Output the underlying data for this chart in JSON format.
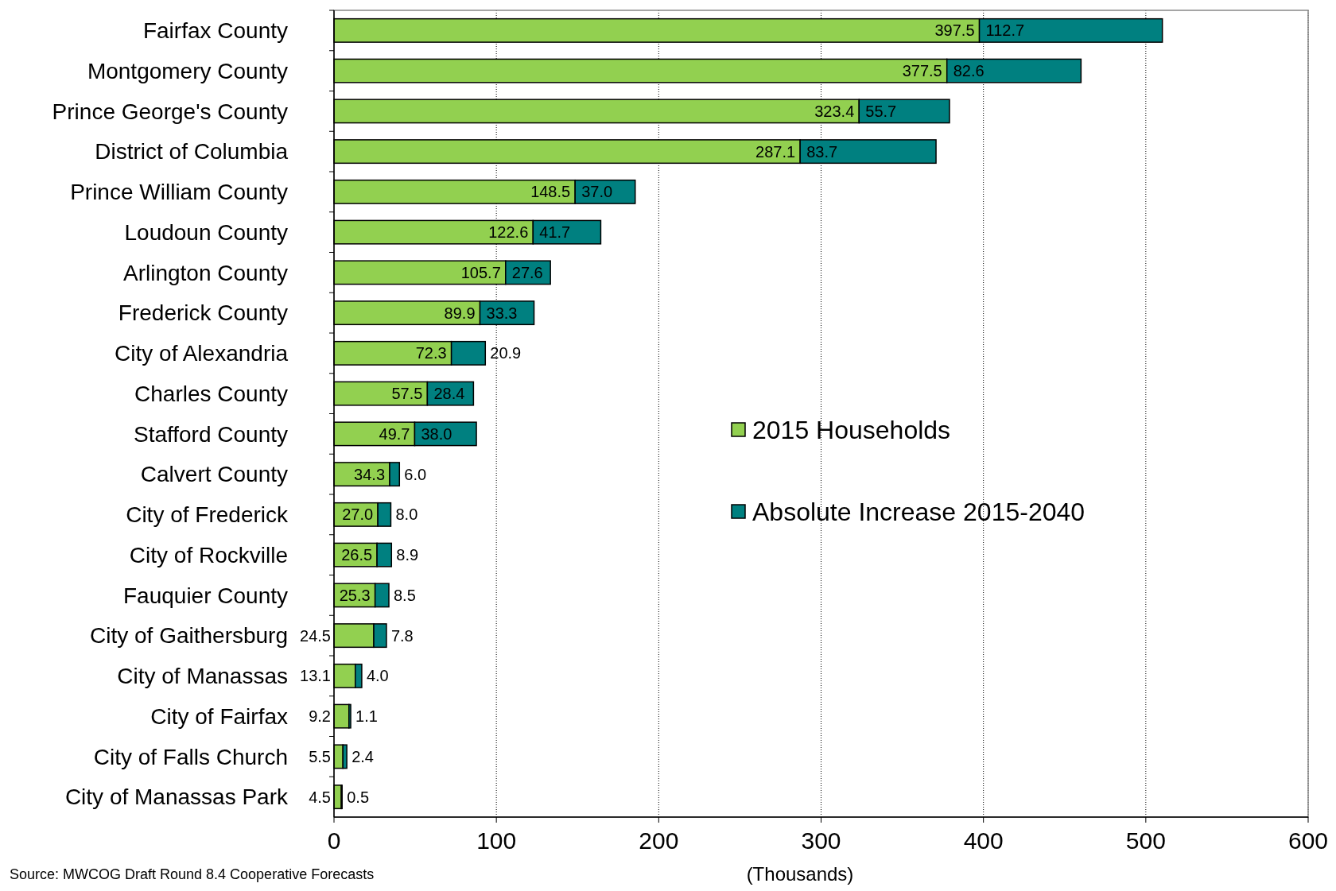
{
  "chart_data": {
    "type": "bar",
    "orientation": "horizontal",
    "stacked": true,
    "xlabel": "(Thousands)",
    "categories": [
      "Fairfax County",
      "Montgomery County",
      "Prince George's County",
      "District of Columbia",
      "Prince William County",
      "Loudoun County",
      "Arlington County",
      "Frederick County",
      "City of Alexandria",
      "Charles County",
      "Stafford County",
      "Calvert County",
      "City of Frederick",
      "City of Rockville",
      "Fauquier County",
      "City of Gaithersburg",
      "City of Manassas",
      "City of Fairfax",
      "City of Falls Church",
      "City of Manassas Park"
    ],
    "series": [
      {
        "name": "2015 Households",
        "color": "#92d050",
        "values": [
          397.5,
          377.5,
          323.4,
          287.1,
          148.5,
          122.6,
          105.7,
          89.9,
          72.3,
          57.5,
          49.7,
          34.3,
          27.0,
          26.5,
          25.3,
          24.5,
          13.1,
          9.2,
          5.5,
          4.5
        ],
        "value_labels": [
          "397.5",
          "377.5",
          "323.4",
          "287.1",
          "148.5",
          "122.6",
          "105.7",
          "89.9",
          "72.3",
          "57.5",
          "49.7",
          "34.3",
          "27.0",
          "26.5",
          "25.3",
          "24.5",
          "13.1",
          "9.2",
          "5.5",
          "4.5"
        ]
      },
      {
        "name": "Absolute Increase 2015-2040",
        "color": "#008080",
        "values": [
          112.7,
          82.6,
          55.7,
          83.7,
          37.0,
          41.7,
          27.6,
          33.3,
          20.9,
          28.4,
          38.0,
          6.0,
          8.0,
          8.9,
          8.5,
          7.8,
          4.0,
          1.1,
          2.4,
          0.5
        ],
        "value_labels": [
          "112.7",
          "82.6",
          "55.7",
          "83.7",
          "37.0",
          "41.7",
          "27.6",
          "33.3",
          "20.9",
          "28.4",
          "38.0",
          "6.0",
          "8.0",
          "8.9",
          "8.5",
          "7.8",
          "4.0",
          "1.1",
          "2.4",
          "0.5"
        ]
      }
    ],
    "xlim": [
      0,
      600
    ],
    "xticks": [
      0,
      100,
      200,
      300,
      400,
      500,
      600
    ],
    "grid": "x",
    "legend": "right",
    "annotations": [
      "Source: MWCOG Draft Round 8.4 Cooperative Forecasts"
    ]
  }
}
